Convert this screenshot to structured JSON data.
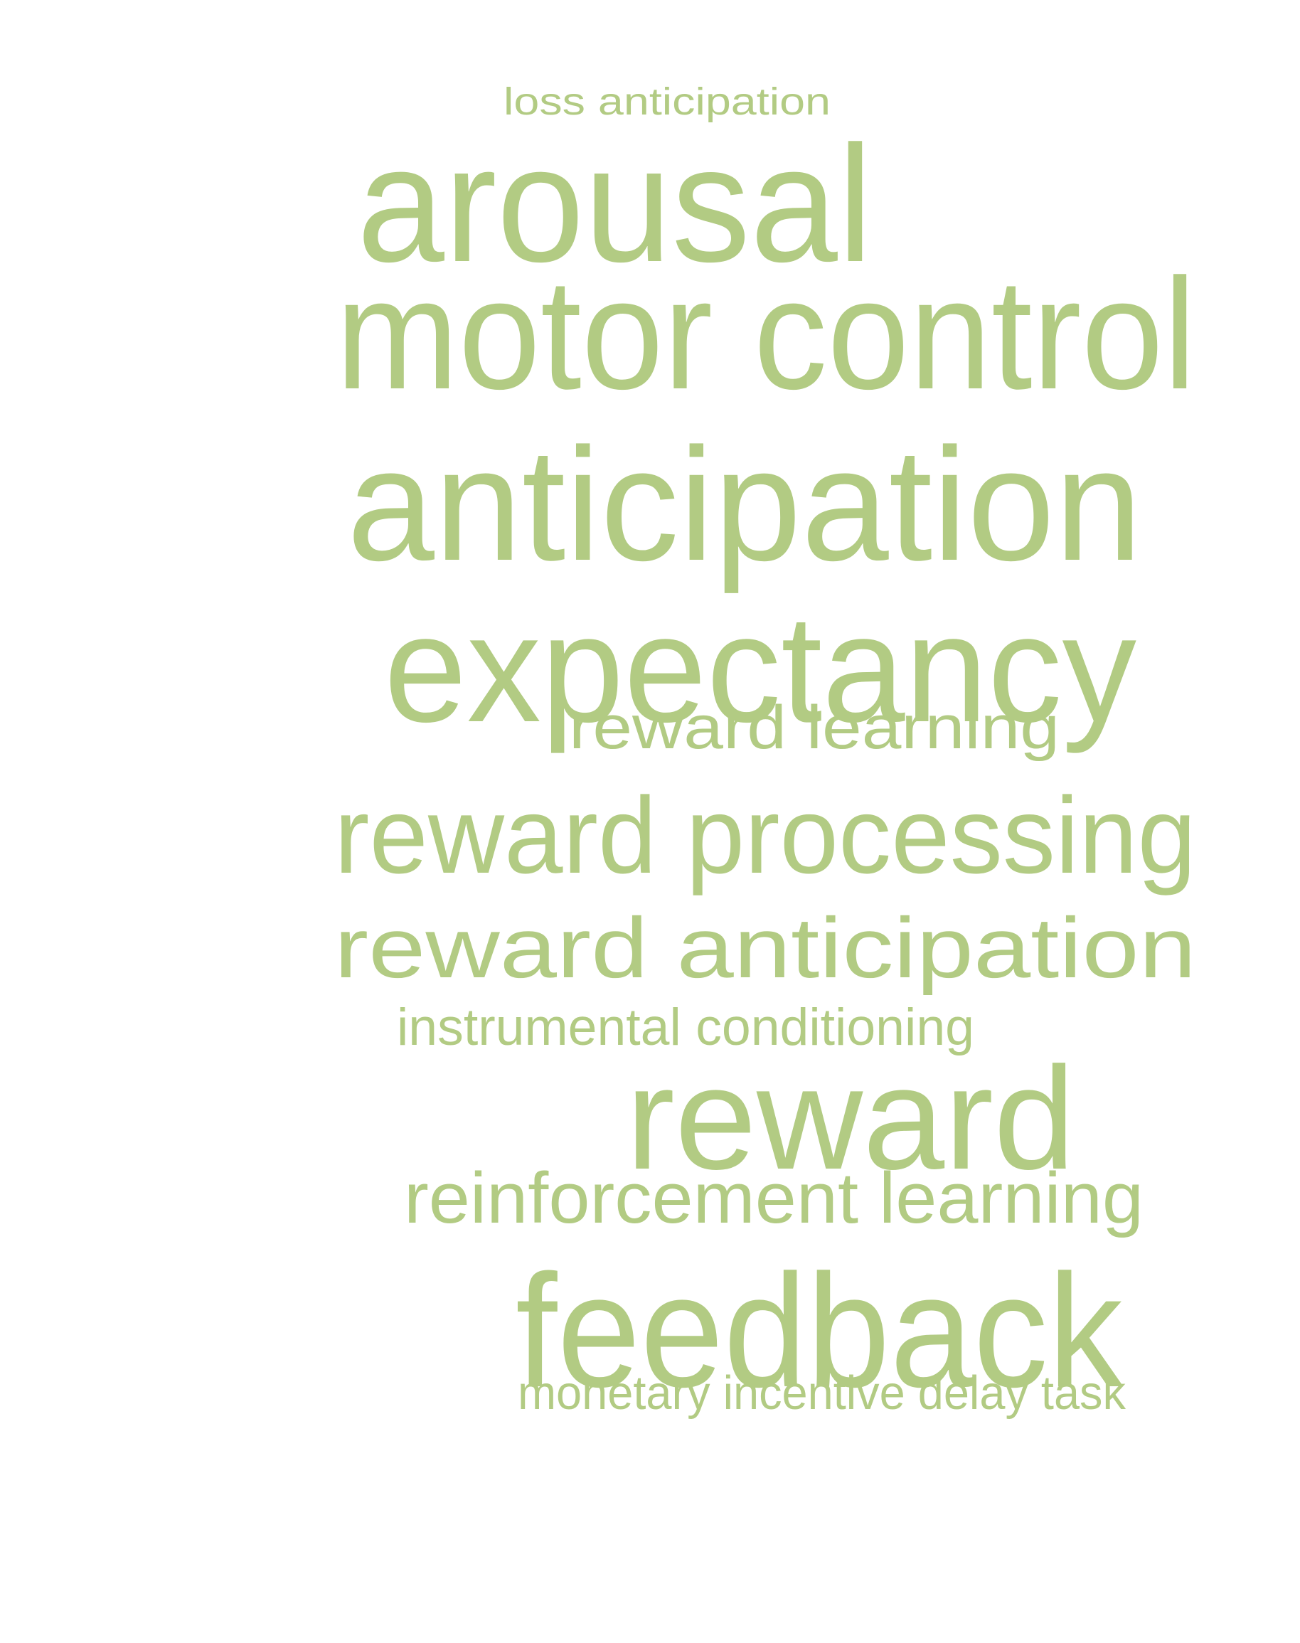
{
  "cloud": {
    "color": "#B2CB83",
    "words": [
      "loss anticipation",
      "arousal",
      "motor control",
      "anticipation",
      "expectancy",
      "reward learning",
      "reward processing",
      "reward anticipation",
      "instrumental conditioning",
      "reward",
      "reinforcement learning",
      "feedback",
      "monetary incentive delay task"
    ]
  }
}
